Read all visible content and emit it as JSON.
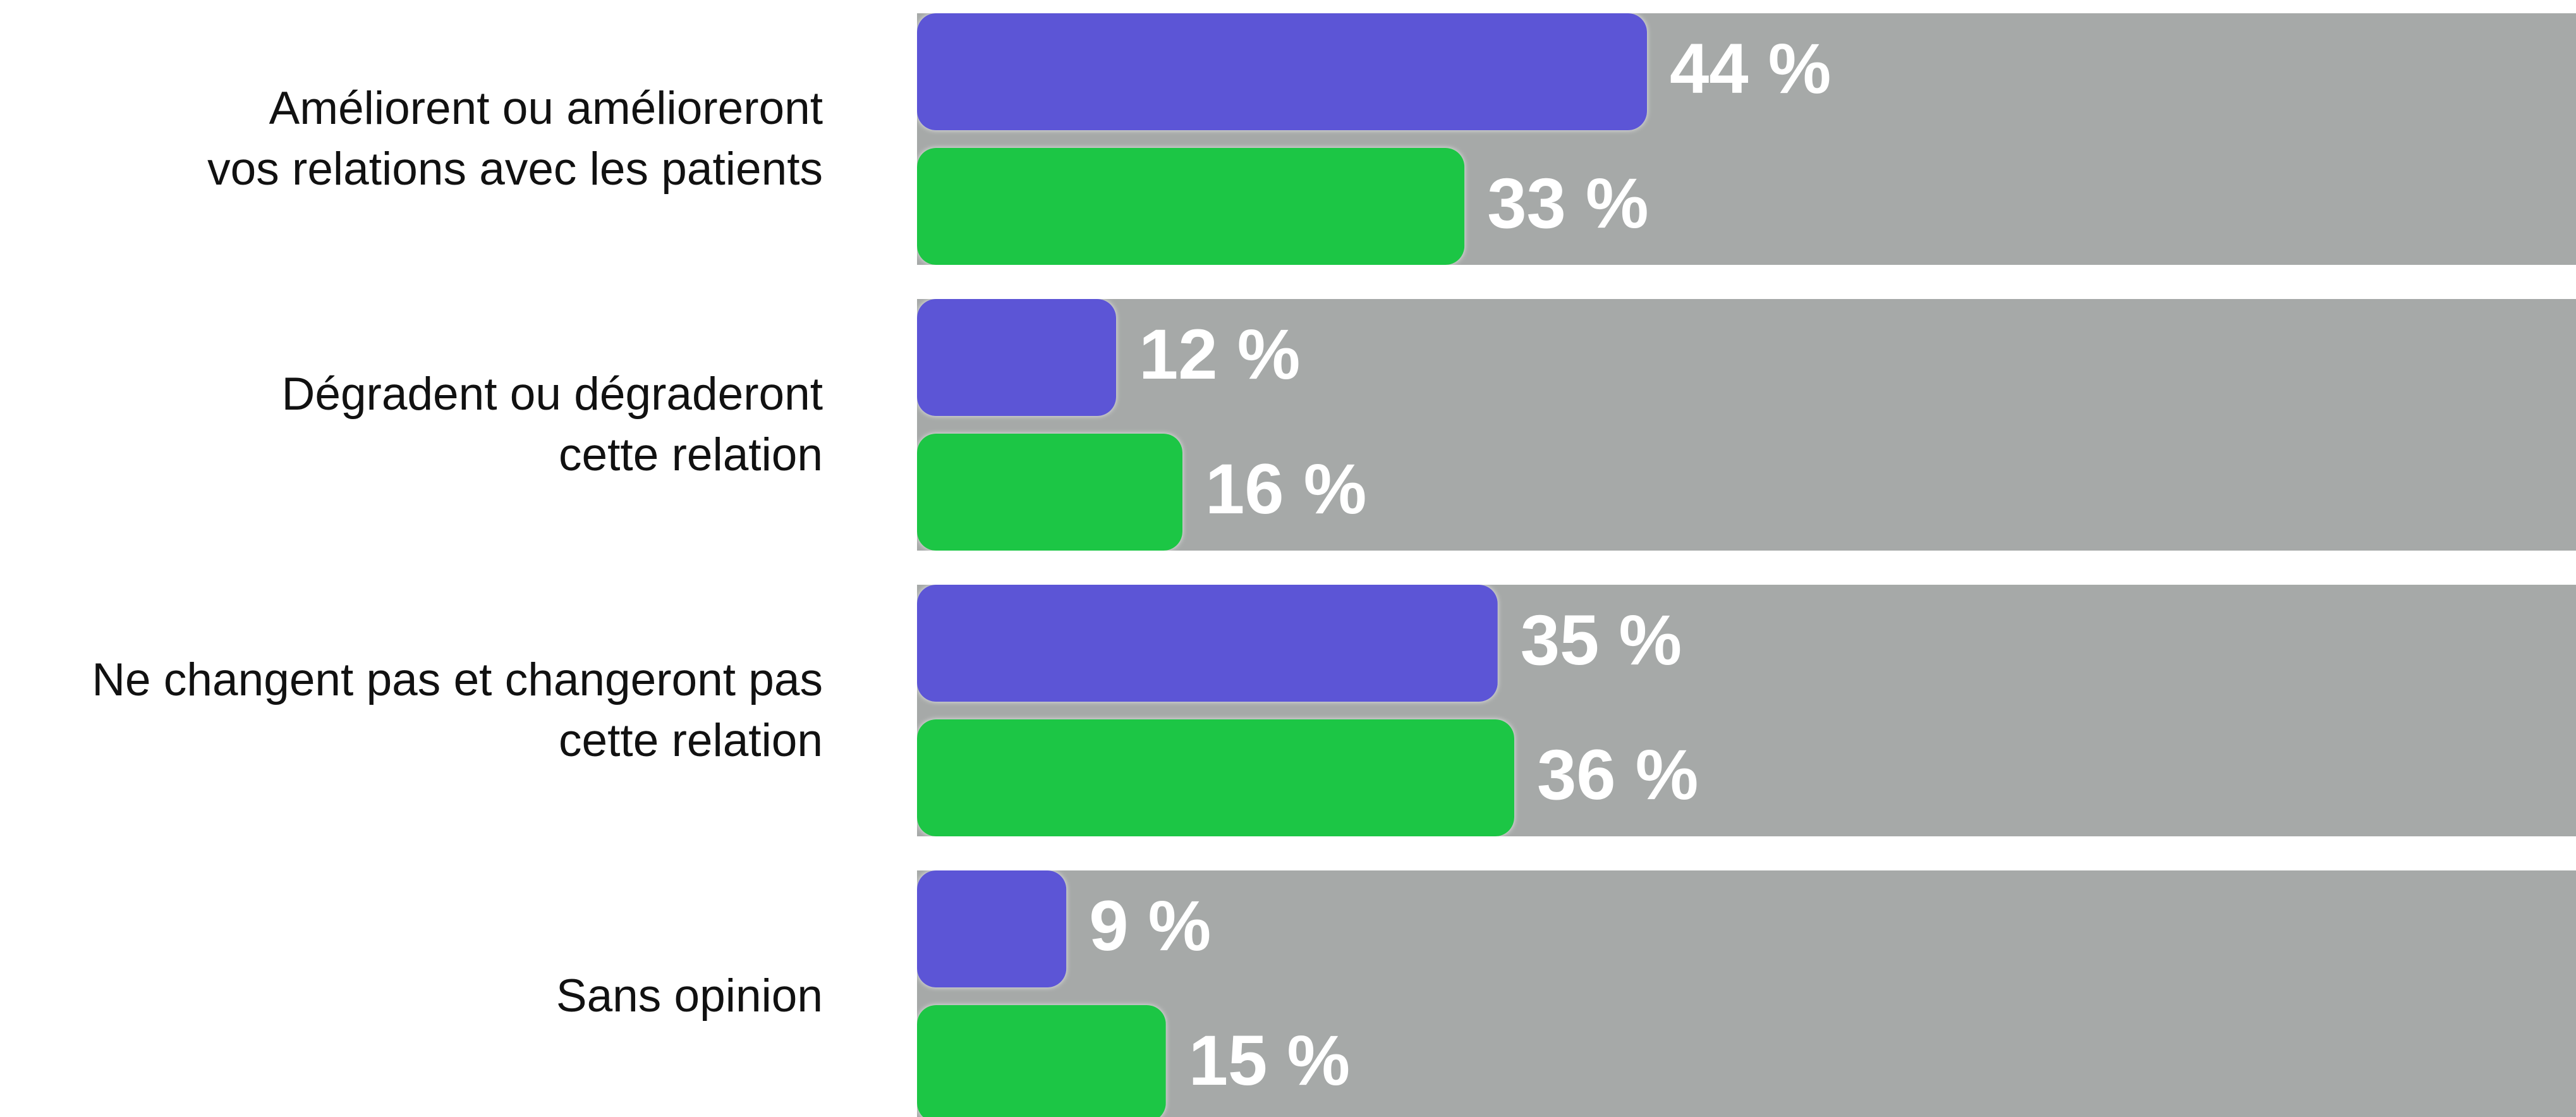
{
  "chart_data": {
    "type": "bar",
    "orientation": "horizontal",
    "categories": [
      "Améliorent ou amélioreront vos relations avec les patients",
      "Dégradent ou dégraderont cette relation",
      "Ne changent pas et changeront pas cette relation",
      "Sans opinion"
    ],
    "series": [
      {
        "color": "#5b54d6",
        "values": [
          44,
          12,
          35,
          9
        ],
        "value_labels": [
          "44 %",
          "12 %",
          "35 %",
          "9 %"
        ]
      },
      {
        "color": "#1cc644",
        "values": [
          33,
          16,
          36,
          15
        ],
        "value_labels": [
          "33 %",
          "16 %",
          "36 %",
          "15 %"
        ]
      }
    ],
    "background_bar_color": "#a6a9a8",
    "xlim": [
      0,
      100
    ]
  }
}
